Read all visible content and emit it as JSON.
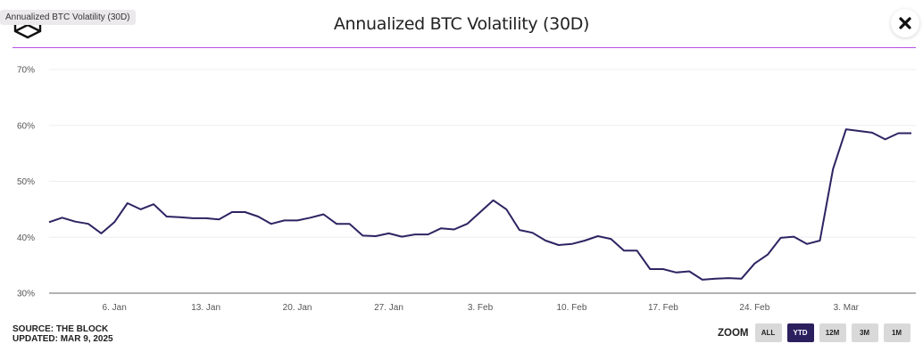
{
  "header": {
    "title": "Annualized BTC Volatility (30D)",
    "tooltip": "Annualized BTC Volatility (30D)",
    "close_icon": "close-icon",
    "logo_icon": "the-block-logo-icon"
  },
  "colors": {
    "line": "#2c2462",
    "accent_divider": "#b84de8",
    "active_button": "#2c1f5e",
    "inactive_button": "#d9d9d9",
    "grid": "#eeeeee",
    "axis": "#999999"
  },
  "footer": {
    "source": "SOURCE: THE BLOCK",
    "updated": "UPDATED: MAR 9, 2025"
  },
  "zoom_controls": {
    "label": "ZOOM",
    "buttons": [
      {
        "label": "ALL",
        "active": false
      },
      {
        "label": "YTD",
        "active": true
      },
      {
        "label": "12M",
        "active": false
      },
      {
        "label": "3M",
        "active": false
      },
      {
        "label": "1M",
        "active": false
      }
    ]
  },
  "chart_data": {
    "type": "line",
    "title": "Annualized BTC Volatility (30D)",
    "xlabel": "",
    "ylabel": "",
    "ylim": [
      30,
      70
    ],
    "y_ticks": [
      "30%",
      "40%",
      "50%",
      "60%",
      "70%"
    ],
    "y_tick_values": [
      30,
      40,
      50,
      60,
      70
    ],
    "x_start": "2025-01-01",
    "x_ticks": [
      "6. Jan",
      "13. Jan",
      "20. Jan",
      "27. Jan",
      "3. Feb",
      "10. Feb",
      "17. Feb",
      "24. Feb",
      "3. Mar"
    ],
    "x_tick_day_index": [
      5,
      12,
      19,
      26,
      33,
      40,
      47,
      54,
      61
    ],
    "grid": true,
    "legend": "none",
    "series": [
      {
        "name": "Annualized BTC Volatility (30D)",
        "unit": "%",
        "values": [
          42.7,
          43.5,
          42.8,
          42.4,
          40.7,
          42.7,
          46.1,
          45.0,
          45.9,
          43.7,
          43.6,
          43.4,
          43.4,
          43.2,
          44.5,
          44.5,
          43.7,
          42.4,
          43.0,
          43.0,
          43.5,
          44.1,
          42.4,
          42.4,
          40.3,
          40.2,
          40.7,
          40.1,
          40.5,
          40.5,
          41.6,
          41.4,
          42.4,
          44.5,
          46.6,
          45.0,
          41.3,
          40.8,
          39.4,
          38.6,
          38.8,
          39.4,
          40.2,
          39.7,
          37.6,
          37.6,
          34.3,
          34.3,
          33.7,
          33.9,
          32.4,
          32.6,
          32.7,
          32.6,
          35.3,
          36.9,
          39.9,
          40.1,
          38.8,
          39.4,
          52.2,
          59.3,
          59.0,
          58.7,
          57.5,
          58.6,
          58.6
        ]
      }
    ]
  }
}
